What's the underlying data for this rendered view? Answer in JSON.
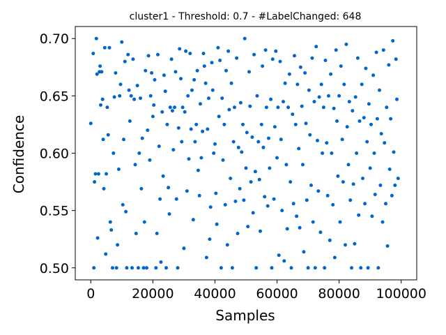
{
  "chart_data": {
    "type": "scatter",
    "title": "cluster1 - Threshold: 0.7 - #LabelChanged: 648",
    "xlabel": "Samples",
    "ylabel": "Confidence",
    "xlim": [
      -5000,
      105000
    ],
    "ylim": [
      0.4895,
      0.7105
    ],
    "x_ticks": [
      0,
      20000,
      40000,
      60000,
      80000,
      100000
    ],
    "y_ticks": [
      0.5,
      0.55,
      0.6,
      0.65,
      0.7
    ],
    "x_tick_labels": [
      "0",
      "20000",
      "40000",
      "60000",
      "80000",
      "100000"
    ],
    "y_tick_labels": [
      "0.50",
      "0.55",
      "0.60",
      "0.65",
      "0.70"
    ],
    "grid": false,
    "legend": "none",
    "marker_color": "#0066cc",
    "points": [
      [
        0,
        0.626
      ],
      [
        800,
        0.687
      ],
      [
        1000,
        0.5
      ],
      [
        1200,
        0.575
      ],
      [
        1500,
        0.582
      ],
      [
        1800,
        0.7
      ],
      [
        2000,
        0.669
      ],
      [
        2200,
        0.526
      ],
      [
        2500,
        0.582
      ],
      [
        2800,
        0.671
      ],
      [
        3000,
        0.676
      ],
      [
        3200,
        0.642
      ],
      [
        3500,
        0.671
      ],
      [
        3800,
        0.647
      ],
      [
        4000,
        0.612
      ],
      [
        4200,
        0.569
      ],
      [
        4500,
        0.692
      ],
      [
        4800,
        0.512
      ],
      [
        5000,
        0.582
      ],
      [
        5300,
        0.64
      ],
      [
        5600,
        0.616
      ],
      [
        6000,
        0.692
      ],
      [
        6300,
        0.54
      ],
      [
        6600,
        0.533
      ],
      [
        7000,
        0.5
      ],
      [
        7300,
        0.6
      ],
      [
        7600,
        0.649
      ],
      [
        8000,
        0.67
      ],
      [
        8300,
        0.5
      ],
      [
        8600,
        0.52
      ],
      [
        9000,
        0.586
      ],
      [
        9300,
        0.65
      ],
      [
        9600,
        0.66
      ],
      [
        10000,
        0.697
      ],
      [
        10300,
        0.555
      ],
      [
        10600,
        0.612
      ],
      [
        11000,
        0.68
      ],
      [
        11300,
        0.549
      ],
      [
        11600,
        0.5
      ],
      [
        12000,
        0.686
      ],
      [
        12300,
        0.655
      ],
      [
        12600,
        0.628
      ],
      [
        13000,
        0.65
      ],
      [
        13300,
        0.5
      ],
      [
        13600,
        0.682
      ],
      [
        14000,
        0.647
      ],
      [
        14300,
        0.59
      ],
      [
        14600,
        0.53
      ],
      [
        15000,
        0.659
      ],
      [
        15300,
        0.5
      ],
      [
        15600,
        0.6
      ],
      [
        16000,
        0.648
      ],
      [
        16300,
        0.569
      ],
      [
        16600,
        0.613
      ],
      [
        17000,
        0.5
      ],
      [
        17300,
        0.54
      ],
      [
        17600,
        0.672
      ],
      [
        18000,
        0.5
      ],
      [
        18300,
        0.62
      ],
      [
        18600,
        0.685
      ],
      [
        19000,
        0.594
      ],
      [
        19300,
        0.65
      ],
      [
        19600,
        0.67
      ],
      [
        20000,
        0.632
      ],
      [
        20300,
        0.642
      ],
      [
        20600,
        0.664
      ],
      [
        21000,
        0.5
      ],
      [
        21300,
        0.53
      ],
      [
        21600,
        0.686
      ],
      [
        22000,
        0.606
      ],
      [
        22300,
        0.56
      ],
      [
        22600,
        0.505
      ],
      [
        23000,
        0.636
      ],
      [
        23300,
        0.58
      ],
      [
        23600,
        0.668
      ],
      [
        24000,
        0.654
      ],
      [
        24300,
        0.5
      ],
      [
        24600,
        0.625
      ],
      [
        25000,
        0.57
      ],
      [
        25300,
        0.547
      ],
      [
        25600,
        0.64
      ],
      [
        26000,
        0.682
      ],
      [
        26300,
        0.637
      ],
      [
        26600,
        0.603
      ],
      [
        27000,
        0.64
      ],
      [
        27300,
        0.671
      ],
      [
        27600,
        0.56
      ],
      [
        28000,
        0.5
      ],
      [
        28300,
        0.622
      ],
      [
        28600,
        0.691
      ],
      [
        29000,
        0.665
      ],
      [
        29300,
        0.61
      ],
      [
        29600,
        0.64
      ],
      [
        30000,
        0.517
      ],
      [
        30300,
        0.636
      ],
      [
        30600,
        0.689
      ],
      [
        31000,
        0.567
      ],
      [
        31300,
        0.65
      ],
      [
        31600,
        0.595
      ],
      [
        32000,
        0.687
      ],
      [
        32300,
        0.621
      ],
      [
        32600,
        0.655
      ],
      [
        33000,
        0.542
      ],
      [
        33300,
        0.664
      ],
      [
        33600,
        0.61
      ],
      [
        34000,
        0.625
      ],
      [
        34300,
        0.672
      ],
      [
        34600,
        0.585
      ],
      [
        35000,
        0.563
      ],
      [
        35300,
        0.643
      ],
      [
        35600,
        0.596
      ],
      [
        36000,
        0.619
      ],
      [
        36300,
        0.687
      ],
      [
        36600,
        0.676
      ],
      [
        37000,
        0.661
      ],
      [
        37300,
        0.509
      ],
      [
        37600,
        0.621
      ],
      [
        38000,
        0.648
      ],
      [
        38300,
        0.525
      ],
      [
        38600,
        0.553
      ],
      [
        39000,
        0.679
      ],
      [
        39300,
        0.655
      ],
      [
        39600,
        0.6
      ],
      [
        40000,
        0.608
      ],
      [
        40300,
        0.565
      ],
      [
        40600,
        0.538
      ],
      [
        41000,
        0.692
      ],
      [
        41300,
        0.632
      ],
      [
        41600,
        0.681
      ],
      [
        42000,
        0.5
      ],
      [
        42300,
        0.648
      ],
      [
        42600,
        0.594
      ],
      [
        43000,
        0.625
      ],
      [
        43300,
        0.555
      ],
      [
        43600,
        0.672
      ],
      [
        44000,
        0.52
      ],
      [
        44300,
        0.689
      ],
      [
        44600,
        0.638
      ],
      [
        45000,
        0.578
      ],
      [
        45300,
        0.661
      ],
      [
        45600,
        0.5
      ],
      [
        46000,
        0.61
      ],
      [
        46300,
        0.64
      ],
      [
        46600,
        0.558
      ],
      [
        47000,
        0.683
      ],
      [
        47300,
        0.53
      ],
      [
        47600,
        0.605
      ],
      [
        48000,
        0.569
      ],
      [
        48300,
        0.644
      ],
      [
        48600,
        0.601
      ],
      [
        49000,
        0.625
      ],
      [
        49300,
        0.559
      ],
      [
        49600,
        0.7
      ],
      [
        50000,
        0.587
      ],
      [
        50300,
        0.618
      ],
      [
        50600,
        0.536
      ],
      [
        51000,
        0.671
      ],
      [
        51300,
        0.641
      ],
      [
        51600,
        0.575
      ],
      [
        52000,
        0.614
      ],
      [
        52300,
        0.548
      ],
      [
        52600,
        0.686
      ],
      [
        53000,
        0.584
      ],
      [
        53300,
        0.5
      ],
      [
        53600,
        0.65
      ],
      [
        54000,
        0.61
      ],
      [
        54300,
        0.577
      ],
      [
        54600,
        0.532
      ],
      [
        55000,
        0.625
      ],
      [
        55300,
        0.676
      ],
      [
        55600,
        0.605
      ],
      [
        56000,
        0.562
      ],
      [
        56300,
        0.69
      ],
      [
        56600,
        0.64
      ],
      [
        57000,
        0.554
      ],
      [
        57300,
        0.613
      ],
      [
        57600,
        0.587
      ],
      [
        58000,
        0.647
      ],
      [
        58300,
        0.5
      ],
      [
        58600,
        0.682
      ],
      [
        59000,
        0.56
      ],
      [
        59300,
        0.623
      ],
      [
        59600,
        0.689
      ],
      [
        60000,
        0.596
      ],
      [
        60300,
        0.64
      ],
      [
        60600,
        0.511
      ],
      [
        61000,
        0.68
      ],
      [
        61300,
        0.612
      ],
      [
        61600,
        0.55
      ],
      [
        62000,
        0.645
      ],
      [
        62300,
        0.506
      ],
      [
        62600,
        0.661
      ],
      [
        63000,
        0.59
      ],
      [
        63300,
        0.534
      ],
      [
        63600,
        0.64
      ],
      [
        64000,
        0.669
      ],
      [
        64300,
        0.575
      ],
      [
        64600,
        0.5
      ],
      [
        65000,
        0.634
      ],
      [
        65300,
        0.556
      ],
      [
        65600,
        0.685
      ],
      [
        66000,
        0.625
      ],
      [
        66300,
        0.545
      ],
      [
        66600,
        0.66
      ],
      [
        67000,
        0.604
      ],
      [
        67300,
        0.535
      ],
      [
        67600,
        0.675
      ],
      [
        68000,
        0.641
      ],
      [
        68300,
        0.59
      ],
      [
        68600,
        0.514
      ],
      [
        69000,
        0.67
      ],
      [
        69300,
        0.626
      ],
      [
        69600,
        0.559
      ],
      [
        70000,
        0.5
      ],
      [
        70300,
        0.655
      ],
      [
        70600,
        0.616
      ],
      [
        71000,
        0.572
      ],
      [
        71300,
        0.683
      ],
      [
        71600,
        0.54
      ],
      [
        72000,
        0.645
      ],
      [
        72300,
        0.5
      ],
      [
        72600,
        0.693
      ],
      [
        73000,
        0.611
      ],
      [
        73300,
        0.567
      ],
      [
        73600,
        0.649
      ],
      [
        74000,
        0.531
      ],
      [
        74300,
        0.66
      ],
      [
        74600,
        0.6
      ],
      [
        75000,
        0.64
      ],
      [
        75300,
        0.5
      ],
      [
        75600,
        0.681
      ],
      [
        76000,
        0.609
      ],
      [
        76300,
        0.563
      ],
      [
        76600,
        0.65
      ],
      [
        77000,
        0.524
      ],
      [
        77300,
        0.669
      ],
      [
        77600,
        0.6
      ],
      [
        78000,
        0.555
      ],
      [
        78300,
        0.639
      ],
      [
        78600,
        0.509
      ],
      [
        79000,
        0.69
      ],
      [
        79300,
        0.628
      ],
      [
        79600,
        0.58
      ],
      [
        80000,
        0.65
      ],
      [
        80300,
        0.54
      ],
      [
        80600,
        0.676
      ],
      [
        81000,
        0.612
      ],
      [
        81300,
        0.575
      ],
      [
        81600,
        0.66
      ],
      [
        82000,
        0.52
      ],
      [
        82300,
        0.695
      ],
      [
        82600,
        0.623
      ],
      [
        83000,
        0.59
      ],
      [
        83300,
        0.645
      ],
      [
        83600,
        0.559
      ],
      [
        84000,
        0.5
      ],
      [
        84300,
        0.637
      ],
      [
        84600,
        0.573
      ],
      [
        85000,
        0.521
      ],
      [
        85300,
        0.649
      ],
      [
        85600,
        0.6
      ],
      [
        86000,
        0.683
      ],
      [
        86300,
        0.546
      ],
      [
        86600,
        0.628
      ],
      [
        87000,
        0.5
      ],
      [
        87300,
        0.66
      ],
      [
        87600,
        0.578
      ],
      [
        88000,
        0.631
      ],
      [
        88300,
        0.556
      ],
      [
        88600,
        0.674
      ],
      [
        89000,
        0.61
      ],
      [
        89300,
        0.5
      ],
      [
        89600,
        0.643
      ],
      [
        90000,
        0.587
      ],
      [
        90300,
        0.625
      ],
      [
        90600,
        0.545
      ],
      [
        91000,
        0.668
      ],
      [
        91300,
        0.6
      ],
      [
        91600,
        0.564
      ],
      [
        92000,
        0.688
      ],
      [
        92300,
        0.63
      ],
      [
        92600,
        0.5
      ],
      [
        93000,
        0.655
      ],
      [
        93300,
        0.572
      ],
      [
        93600,
        0.617
      ],
      [
        94000,
        0.54
      ],
      [
        94300,
        0.69
      ],
      [
        94600,
        0.609
      ],
      [
        95000,
        0.556
      ],
      [
        95300,
        0.64
      ],
      [
        95600,
        0.519
      ],
      [
        96000,
        0.677
      ],
      [
        96300,
        0.586
      ],
      [
        96600,
        0.63
      ],
      [
        97000,
        0.563
      ],
      [
        97300,
        0.698
      ],
      [
        97600,
        0.601
      ],
      [
        98000,
        0.572
      ],
      [
        98300,
        0.682
      ],
      [
        98600,
        0.647
      ],
      [
        99000,
        0.578
      ]
    ]
  }
}
